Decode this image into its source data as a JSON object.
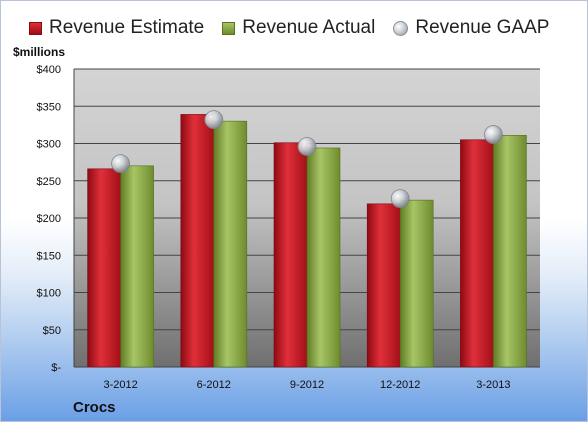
{
  "legend": {
    "estimate": "Revenue Estimate",
    "actual": "Revenue Actual",
    "gaap": "Revenue GAAP"
  },
  "unit_label": "$millions",
  "company": "Crocs",
  "colors": {
    "estimate": "#c41a24",
    "actual": "#8aab46",
    "gaap": "#c8ccd2",
    "plot_background": "#d2d2d2"
  },
  "chart_data": {
    "type": "bar",
    "categories": [
      "3-2012",
      "6-2012",
      "9-2012",
      "12-2012",
      "3-2013"
    ],
    "series": [
      {
        "name": "Revenue Estimate",
        "type": "bar",
        "values": [
          266,
          339,
          301,
          219,
          305
        ]
      },
      {
        "name": "Revenue Actual",
        "type": "bar",
        "values": [
          270,
          330,
          294,
          224,
          311
        ]
      },
      {
        "name": "Revenue GAAP",
        "type": "scatter",
        "values": [
          273,
          332,
          296,
          226,
          312
        ]
      }
    ],
    "ylabel": "$millions",
    "ylim": [
      0,
      400
    ],
    "yticks": [
      0,
      50,
      100,
      150,
      200,
      250,
      300,
      350,
      400
    ],
    "ytick_labels": [
      "$-",
      "$50",
      "$100",
      "$150",
      "$200",
      "$250",
      "$300",
      "$350",
      "$400"
    ],
    "grid": true,
    "legend_position": "top"
  }
}
